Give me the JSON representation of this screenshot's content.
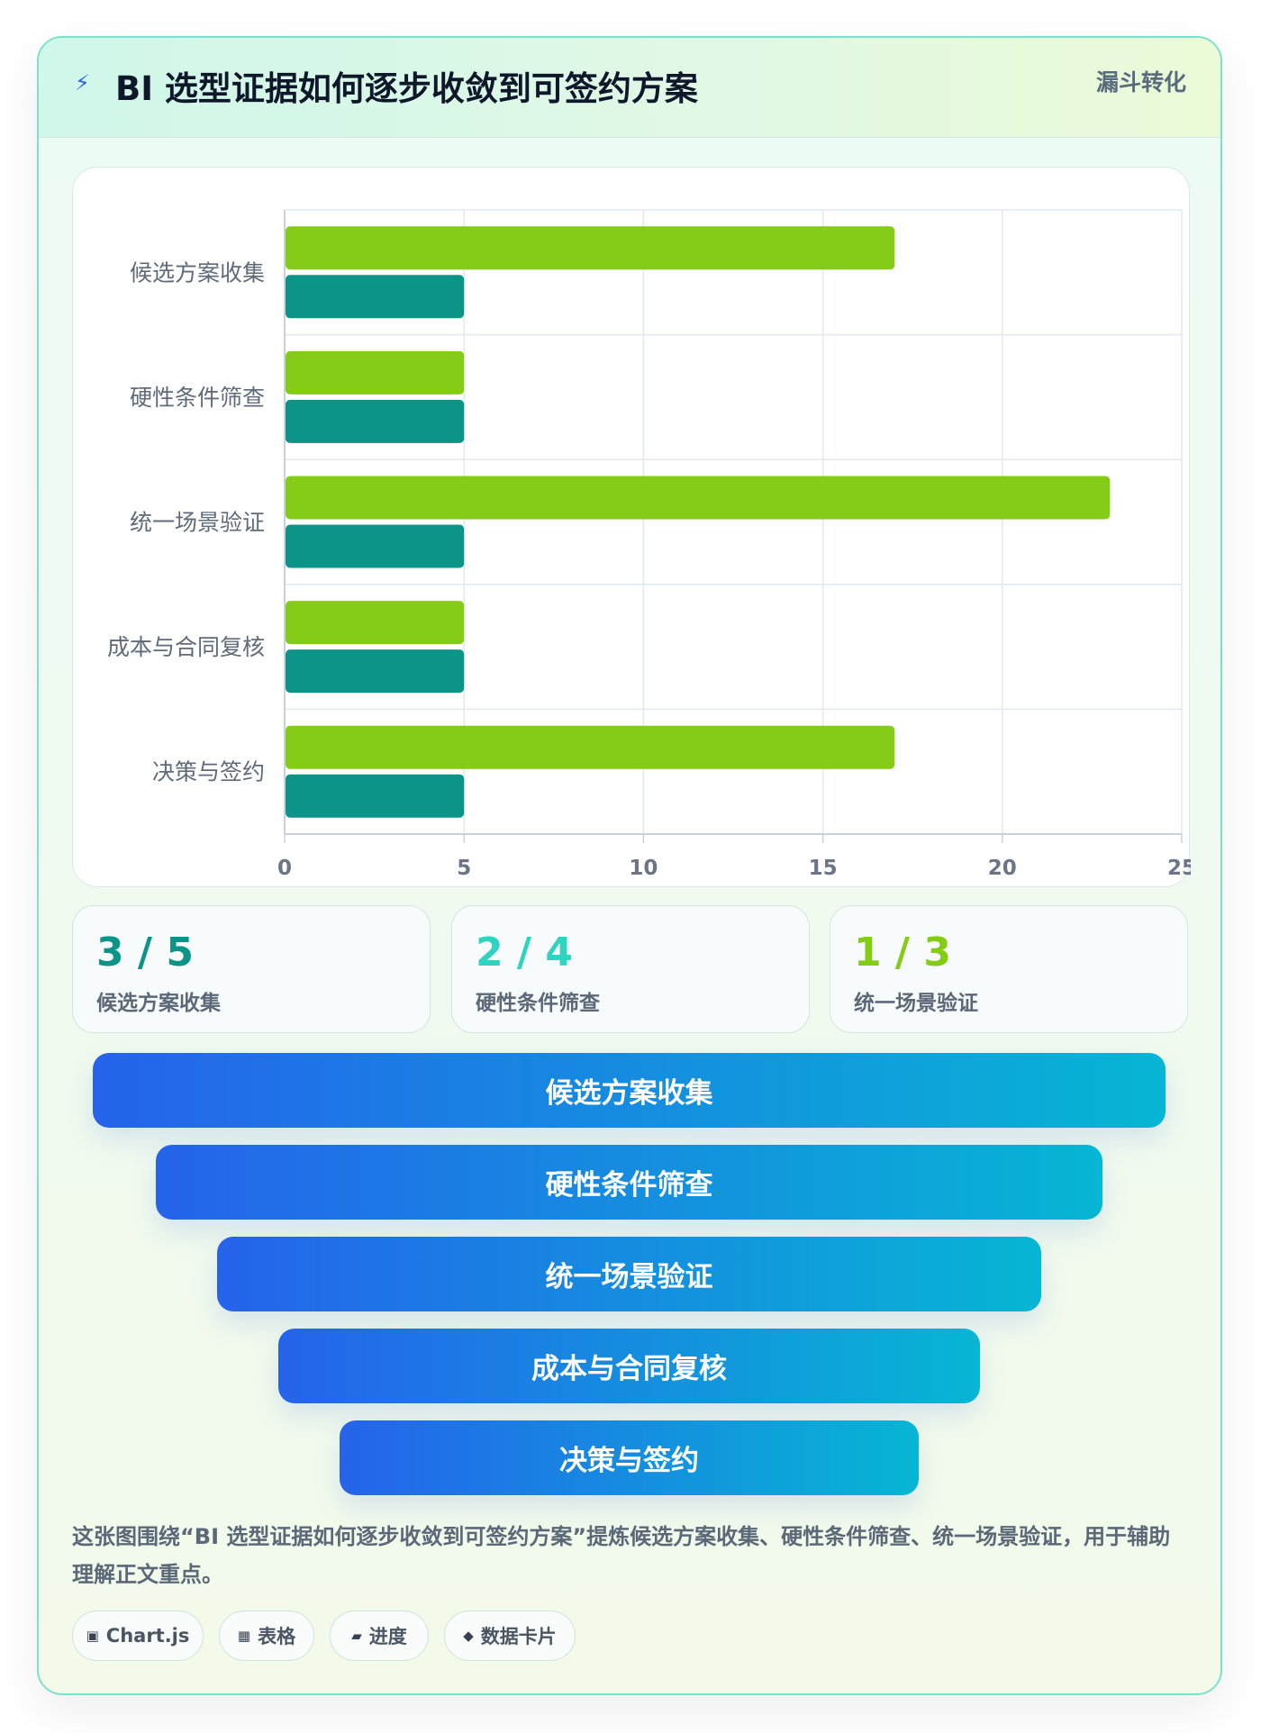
{
  "header": {
    "title": "BI 选型证据如何逐步收敛到可签约方案",
    "tag": "漏斗转化",
    "icon": "lightning-icon"
  },
  "chart_data": {
    "type": "bar",
    "orientation": "horizontal",
    "categories": [
      "候选方案收集",
      "硬性条件筛查",
      "统一场景验证",
      "成本与合同复核",
      "决策与签约"
    ],
    "series": [
      {
        "values": [
          17,
          5,
          23,
          5,
          17
        ],
        "color": "#84cc16"
      },
      {
        "values": [
          5,
          5,
          5,
          5,
          5
        ],
        "color": "#0d9488"
      }
    ],
    "xlim": [
      0,
      25
    ],
    "xticks": [
      0,
      5,
      10,
      15,
      20,
      25
    ],
    "grid": true,
    "title": "",
    "xlabel": "",
    "ylabel": ""
  },
  "stats": [
    {
      "value": "3 / 5",
      "label": "候选方案收集",
      "color": "#0d9488"
    },
    {
      "value": "2 / 4",
      "label": "硬性条件筛查",
      "color": "#2dd4bf"
    },
    {
      "value": "1 / 3",
      "label": "统一场景验证",
      "color": "#84cc16"
    }
  ],
  "funnel": [
    {
      "label": "候选方案收集"
    },
    {
      "label": "硬性条件筛查"
    },
    {
      "label": "统一场景验证"
    },
    {
      "label": "成本与合同复核"
    },
    {
      "label": "决策与签约"
    }
  ],
  "summary": "这张图围绕“BI 选型证据如何逐步收敛到可签约方案”提炼候选方案收集、硬性条件筛查、统一场景验证，用于辅助理解正文重点。",
  "chips": [
    {
      "icon": "▣",
      "label": "Chart.js"
    },
    {
      "icon": "▦",
      "label": "表格"
    },
    {
      "icon": "▰",
      "label": "进度"
    },
    {
      "icon": "◆",
      "label": "数据卡片"
    }
  ]
}
